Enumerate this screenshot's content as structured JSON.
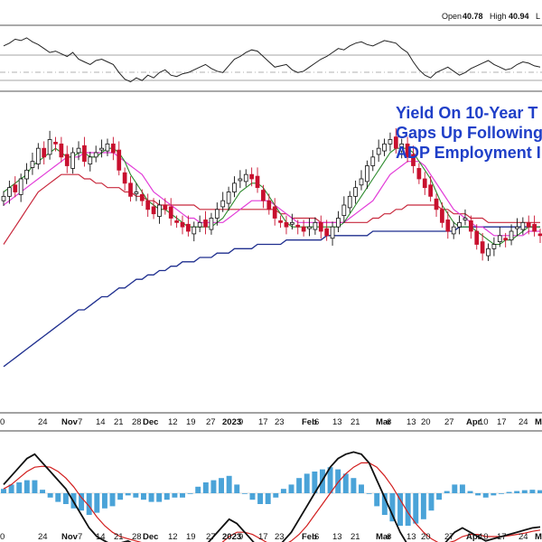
{
  "header": {
    "open_label": "Open",
    "open_value": "40.78",
    "high_label": "High",
    "high_value": "40.94",
    "low_label_fragment": "L"
  },
  "annotation_lines": [
    "Yield On 10-Year T",
    "Gaps Up Following",
    "ADP Employment I"
  ],
  "x_ticks": [
    {
      "label": "0",
      "bold": false
    },
    {
      "label": "24",
      "bold": false
    },
    {
      "label": "Nov",
      "bold": true
    },
    {
      "label": "7",
      "bold": false
    },
    {
      "label": "14",
      "bold": false
    },
    {
      "label": "21",
      "bold": false
    },
    {
      "label": "28",
      "bold": false
    },
    {
      "label": "Dec",
      "bold": true
    },
    {
      "label": "12",
      "bold": false
    },
    {
      "label": "19",
      "bold": false
    },
    {
      "label": "27",
      "bold": false
    },
    {
      "label": "2023",
      "bold": true
    },
    {
      "label": "9",
      "bold": false
    },
    {
      "label": "17",
      "bold": false
    },
    {
      "label": "23",
      "bold": false
    },
    {
      "label": "Feb",
      "bold": true
    },
    {
      "label": "6",
      "bold": false
    },
    {
      "label": "13",
      "bold": false
    },
    {
      "label": "21",
      "bold": false
    },
    {
      "label": "Mar",
      "bold": true
    },
    {
      "label": "6",
      "bold": false
    },
    {
      "label": "13",
      "bold": false
    },
    {
      "label": "20",
      "bold": false
    },
    {
      "label": "27",
      "bold": false
    },
    {
      "label": "Apr",
      "bold": true
    },
    {
      "label": "10",
      "bold": false
    },
    {
      "label": "17",
      "bold": false
    },
    {
      "label": "24",
      "bold": false
    },
    {
      "label": "Ma",
      "bold": true
    }
  ],
  "colors": {
    "up": "#111111",
    "down": "#c8102e",
    "sma_short": "#2e8b2e",
    "sma_mid": "#e23bd8",
    "sma_long": "#c8283c",
    "sma_200": "#1f2f8f",
    "macd": "#111111",
    "signal": "#d21e1e",
    "histogram": "#4aa3d8",
    "rsi": "#222222",
    "annotation": "#1f3fc8"
  },
  "chart_data": {
    "type": "candlestick",
    "title": "",
    "candles_close": [
      44,
      46,
      45,
      48,
      50,
      52,
      55,
      53,
      57,
      56,
      53,
      51,
      54,
      55,
      52,
      53,
      54,
      55,
      56,
      54,
      50,
      47,
      44,
      45,
      43,
      41,
      40,
      42,
      41,
      39,
      38,
      37,
      36,
      37,
      38,
      37,
      39,
      41,
      43,
      45,
      47,
      48,
      49,
      48,
      46,
      43,
      41,
      39,
      38,
      37,
      38,
      37,
      36,
      37,
      38,
      36,
      35,
      37,
      39,
      42,
      44,
      46,
      48,
      51,
      53,
      55,
      56,
      57,
      55,
      56,
      53,
      51,
      48,
      46,
      44,
      41,
      38,
      36,
      37,
      38,
      39,
      36,
      33,
      31,
      32,
      33,
      35,
      34,
      36,
      37,
      38,
      37,
      36,
      35
    ],
    "sma_short": [
      45,
      46,
      47,
      48,
      49,
      51,
      52,
      53,
      54,
      55,
      54,
      53,
      53,
      54,
      54,
      53,
      53,
      54,
      55,
      55,
      54,
      52,
      49,
      47,
      45,
      43,
      42,
      41,
      41,
      40,
      39,
      38,
      37,
      37,
      37,
      37,
      37,
      38,
      39,
      41,
      43,
      45,
      46,
      47,
      47,
      46,
      44,
      42,
      40,
      38,
      37,
      37,
      37,
      37,
      37,
      37,
      37,
      37,
      37,
      38,
      40,
      42,
      44,
      46,
      48,
      50,
      52,
      54,
      55,
      55,
      55,
      54,
      52,
      50,
      48,
      45,
      42,
      40,
      38,
      37,
      37,
      37,
      36,
      35,
      34,
      33,
      33,
      34,
      34,
      35,
      36,
      37,
      37,
      37
    ],
    "sma_mid": [
      42,
      43,
      44,
      45,
      46,
      47,
      48,
      49,
      50,
      51,
      52,
      53,
      53,
      53,
      54,
      54,
      54,
      54,
      54,
      54,
      53,
      52,
      51,
      50,
      49,
      47,
      45,
      44,
      43,
      42,
      41,
      40,
      39,
      39,
      38,
      38,
      38,
      38,
      38,
      39,
      40,
      41,
      42,
      43,
      43,
      43,
      43,
      42,
      41,
      40,
      39,
      38,
      38,
      38,
      38,
      38,
      38,
      38,
      38,
      38,
      39,
      40,
      41,
      42,
      43,
      45,
      47,
      49,
      50,
      51,
      52,
      52,
      52,
      51,
      49,
      47,
      45,
      43,
      41,
      40,
      39,
      38,
      37,
      37,
      36,
      35,
      35,
      35,
      35,
      35,
      35,
      36,
      36,
      36
    ],
    "sma_long": [
      33,
      35,
      37,
      39,
      41,
      43,
      45,
      46,
      47,
      48,
      49,
      49,
      49,
      49,
      48,
      48,
      47,
      47,
      46,
      46,
      46,
      45,
      45,
      44,
      44,
      43,
      43,
      42,
      42,
      42,
      42,
      42,
      42,
      42,
      41,
      41,
      41,
      41,
      41,
      41,
      41,
      41,
      41,
      41,
      41,
      41,
      41,
      41,
      40,
      40,
      39,
      39,
      39,
      39,
      39,
      38,
      38,
      38,
      38,
      38,
      38,
      38,
      38,
      38,
      39,
      39,
      40,
      40,
      41,
      41,
      42,
      42,
      42,
      42,
      42,
      42,
      41,
      41,
      40,
      40,
      40,
      39,
      39,
      39,
      38,
      38,
      38,
      38,
      38,
      38,
      38,
      38,
      38,
      38
    ],
    "sma_200": [
      5,
      6,
      7,
      8,
      9,
      10,
      11,
      12,
      13,
      14,
      15,
      16,
      17,
      18,
      18,
      19,
      20,
      21,
      21,
      22,
      23,
      23,
      24,
      25,
      25,
      26,
      26,
      27,
      27,
      28,
      28,
      29,
      29,
      29,
      30,
      30,
      30,
      31,
      31,
      31,
      32,
      32,
      32,
      32,
      33,
      33,
      33,
      33,
      33,
      34,
      34,
      34,
      34,
      34,
      34,
      34,
      35,
      35,
      35,
      35,
      35,
      35,
      35,
      35,
      36,
      36,
      36,
      36,
      36,
      36,
      36,
      36,
      36,
      36,
      36,
      36,
      36,
      36,
      36,
      37,
      37,
      37,
      37,
      37,
      37,
      37,
      37,
      37,
      37,
      37,
      37,
      37,
      37,
      37
    ],
    "rsi": [
      60,
      62,
      65,
      64,
      66,
      63,
      61,
      58,
      55,
      56,
      54,
      52,
      55,
      50,
      48,
      46,
      49,
      50,
      48,
      46,
      40,
      35,
      33,
      36,
      34,
      38,
      36,
      40,
      42,
      38,
      37,
      39,
      40,
      42,
      44,
      46,
      43,
      41,
      40,
      45,
      50,
      52,
      55,
      57,
      56,
      52,
      48,
      44,
      45,
      46,
      42,
      40,
      41,
      44,
      47,
      50,
      52,
      55,
      58,
      57,
      60,
      62,
      63,
      61,
      60,
      62,
      64,
      63,
      62,
      58,
      55,
      48,
      42,
      38,
      36,
      40,
      42,
      44,
      41,
      38,
      40,
      43,
      45,
      47,
      49,
      46,
      44,
      42,
      43,
      46,
      48,
      47,
      45,
      44
    ],
    "macd": [
      0.2,
      0.4,
      0.6,
      0.8,
      0.9,
      0.7,
      0.5,
      0.3,
      0.1,
      -0.2,
      -0.5,
      -0.8,
      -1.0,
      -1.1,
      -1.2,
      -1.15,
      -1.1,
      -1.2,
      -1.3,
      -1.4,
      -1.5,
      -1.55,
      -1.6,
      -1.7,
      -1.6,
      -1.4,
      -1.2,
      -1.0,
      -0.8,
      -0.6,
      -0.7,
      -0.9,
      -1.1,
      -1.3,
      -1.4,
      -1.3,
      -1.1,
      -0.9,
      -0.6,
      -0.3,
      0.0,
      0.3,
      0.6,
      0.8,
      0.9,
      0.95,
      0.9,
      0.7,
      0.3,
      -0.1,
      -0.5,
      -0.9,
      -1.2,
      -1.4,
      -1.5,
      -1.45,
      -1.3,
      -1.1,
      -0.9,
      -0.8,
      -0.9,
      -1.0,
      -1.1,
      -1.05,
      -1.0,
      -0.95,
      -0.9,
      -0.85,
      -0.8,
      -0.78
    ],
    "signal": [
      0.1,
      0.2,
      0.35,
      0.5,
      0.6,
      0.62,
      0.6,
      0.5,
      0.35,
      0.15,
      -0.1,
      -0.3,
      -0.55,
      -0.75,
      -0.9,
      -1.0,
      -1.05,
      -1.1,
      -1.15,
      -1.2,
      -1.3,
      -1.4,
      -1.5,
      -1.6,
      -1.6,
      -1.55,
      -1.45,
      -1.3,
      -1.15,
      -1.0,
      -0.9,
      -0.9,
      -0.95,
      -1.05,
      -1.15,
      -1.2,
      -1.2,
      -1.1,
      -0.95,
      -0.75,
      -0.5,
      -0.25,
      0.0,
      0.25,
      0.45,
      0.6,
      0.7,
      0.7,
      0.6,
      0.4,
      0.15,
      -0.15,
      -0.45,
      -0.7,
      -0.9,
      -1.05,
      -1.15,
      -1.15,
      -1.1,
      -1.0,
      -0.95,
      -0.95,
      -1.0,
      -1.0,
      -1.0,
      -0.98,
      -0.95,
      -0.92,
      -0.88,
      -0.85
    ]
  }
}
